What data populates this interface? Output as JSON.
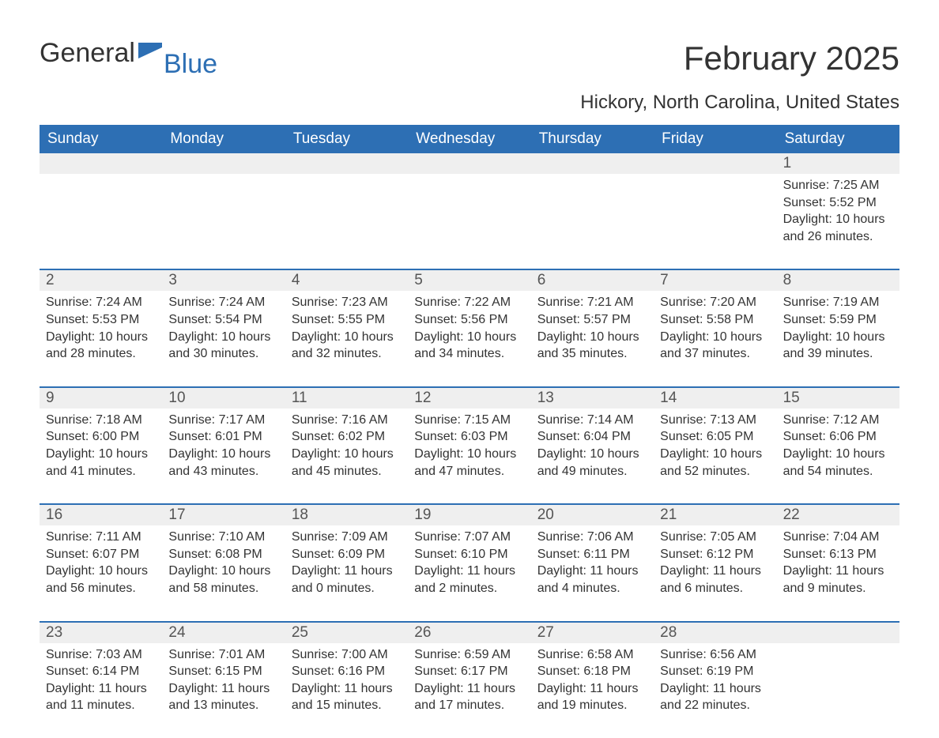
{
  "logo": {
    "word1": "General",
    "word2": "Blue",
    "flag_color": "#2d6fb4"
  },
  "title": "February 2025",
  "location": "Hickory, North Carolina, United States",
  "colors": {
    "header_bg": "#2d6fb4",
    "header_text": "#ffffff",
    "daynum_bg": "#efefef",
    "body_text": "#333333",
    "rule": "#2d6fb4"
  },
  "day_names": [
    "Sunday",
    "Monday",
    "Tuesday",
    "Wednesday",
    "Thursday",
    "Friday",
    "Saturday"
  ],
  "weeks": [
    [
      null,
      null,
      null,
      null,
      null,
      null,
      {
        "n": "1",
        "sunrise": "Sunrise: 7:25 AM",
        "sunset": "Sunset: 5:52 PM",
        "daylight": "Daylight: 10 hours and 26 minutes."
      }
    ],
    [
      {
        "n": "2",
        "sunrise": "Sunrise: 7:24 AM",
        "sunset": "Sunset: 5:53 PM",
        "daylight": "Daylight: 10 hours and 28 minutes."
      },
      {
        "n": "3",
        "sunrise": "Sunrise: 7:24 AM",
        "sunset": "Sunset: 5:54 PM",
        "daylight": "Daylight: 10 hours and 30 minutes."
      },
      {
        "n": "4",
        "sunrise": "Sunrise: 7:23 AM",
        "sunset": "Sunset: 5:55 PM",
        "daylight": "Daylight: 10 hours and 32 minutes."
      },
      {
        "n": "5",
        "sunrise": "Sunrise: 7:22 AM",
        "sunset": "Sunset: 5:56 PM",
        "daylight": "Daylight: 10 hours and 34 minutes."
      },
      {
        "n": "6",
        "sunrise": "Sunrise: 7:21 AM",
        "sunset": "Sunset: 5:57 PM",
        "daylight": "Daylight: 10 hours and 35 minutes."
      },
      {
        "n": "7",
        "sunrise": "Sunrise: 7:20 AM",
        "sunset": "Sunset: 5:58 PM",
        "daylight": "Daylight: 10 hours and 37 minutes."
      },
      {
        "n": "8",
        "sunrise": "Sunrise: 7:19 AM",
        "sunset": "Sunset: 5:59 PM",
        "daylight": "Daylight: 10 hours and 39 minutes."
      }
    ],
    [
      {
        "n": "9",
        "sunrise": "Sunrise: 7:18 AM",
        "sunset": "Sunset: 6:00 PM",
        "daylight": "Daylight: 10 hours and 41 minutes."
      },
      {
        "n": "10",
        "sunrise": "Sunrise: 7:17 AM",
        "sunset": "Sunset: 6:01 PM",
        "daylight": "Daylight: 10 hours and 43 minutes."
      },
      {
        "n": "11",
        "sunrise": "Sunrise: 7:16 AM",
        "sunset": "Sunset: 6:02 PM",
        "daylight": "Daylight: 10 hours and 45 minutes."
      },
      {
        "n": "12",
        "sunrise": "Sunrise: 7:15 AM",
        "sunset": "Sunset: 6:03 PM",
        "daylight": "Daylight: 10 hours and 47 minutes."
      },
      {
        "n": "13",
        "sunrise": "Sunrise: 7:14 AM",
        "sunset": "Sunset: 6:04 PM",
        "daylight": "Daylight: 10 hours and 49 minutes."
      },
      {
        "n": "14",
        "sunrise": "Sunrise: 7:13 AM",
        "sunset": "Sunset: 6:05 PM",
        "daylight": "Daylight: 10 hours and 52 minutes."
      },
      {
        "n": "15",
        "sunrise": "Sunrise: 7:12 AM",
        "sunset": "Sunset: 6:06 PM",
        "daylight": "Daylight: 10 hours and 54 minutes."
      }
    ],
    [
      {
        "n": "16",
        "sunrise": "Sunrise: 7:11 AM",
        "sunset": "Sunset: 6:07 PM",
        "daylight": "Daylight: 10 hours and 56 minutes."
      },
      {
        "n": "17",
        "sunrise": "Sunrise: 7:10 AM",
        "sunset": "Sunset: 6:08 PM",
        "daylight": "Daylight: 10 hours and 58 minutes."
      },
      {
        "n": "18",
        "sunrise": "Sunrise: 7:09 AM",
        "sunset": "Sunset: 6:09 PM",
        "daylight": "Daylight: 11 hours and 0 minutes."
      },
      {
        "n": "19",
        "sunrise": "Sunrise: 7:07 AM",
        "sunset": "Sunset: 6:10 PM",
        "daylight": "Daylight: 11 hours and 2 minutes."
      },
      {
        "n": "20",
        "sunrise": "Sunrise: 7:06 AM",
        "sunset": "Sunset: 6:11 PM",
        "daylight": "Daylight: 11 hours and 4 minutes."
      },
      {
        "n": "21",
        "sunrise": "Sunrise: 7:05 AM",
        "sunset": "Sunset: 6:12 PM",
        "daylight": "Daylight: 11 hours and 6 minutes."
      },
      {
        "n": "22",
        "sunrise": "Sunrise: 7:04 AM",
        "sunset": "Sunset: 6:13 PM",
        "daylight": "Daylight: 11 hours and 9 minutes."
      }
    ],
    [
      {
        "n": "23",
        "sunrise": "Sunrise: 7:03 AM",
        "sunset": "Sunset: 6:14 PM",
        "daylight": "Daylight: 11 hours and 11 minutes."
      },
      {
        "n": "24",
        "sunrise": "Sunrise: 7:01 AM",
        "sunset": "Sunset: 6:15 PM",
        "daylight": "Daylight: 11 hours and 13 minutes."
      },
      {
        "n": "25",
        "sunrise": "Sunrise: 7:00 AM",
        "sunset": "Sunset: 6:16 PM",
        "daylight": "Daylight: 11 hours and 15 minutes."
      },
      {
        "n": "26",
        "sunrise": "Sunrise: 6:59 AM",
        "sunset": "Sunset: 6:17 PM",
        "daylight": "Daylight: 11 hours and 17 minutes."
      },
      {
        "n": "27",
        "sunrise": "Sunrise: 6:58 AM",
        "sunset": "Sunset: 6:18 PM",
        "daylight": "Daylight: 11 hours and 19 minutes."
      },
      {
        "n": "28",
        "sunrise": "Sunrise: 6:56 AM",
        "sunset": "Sunset: 6:19 PM",
        "daylight": "Daylight: 11 hours and 22 minutes."
      },
      null
    ]
  ]
}
